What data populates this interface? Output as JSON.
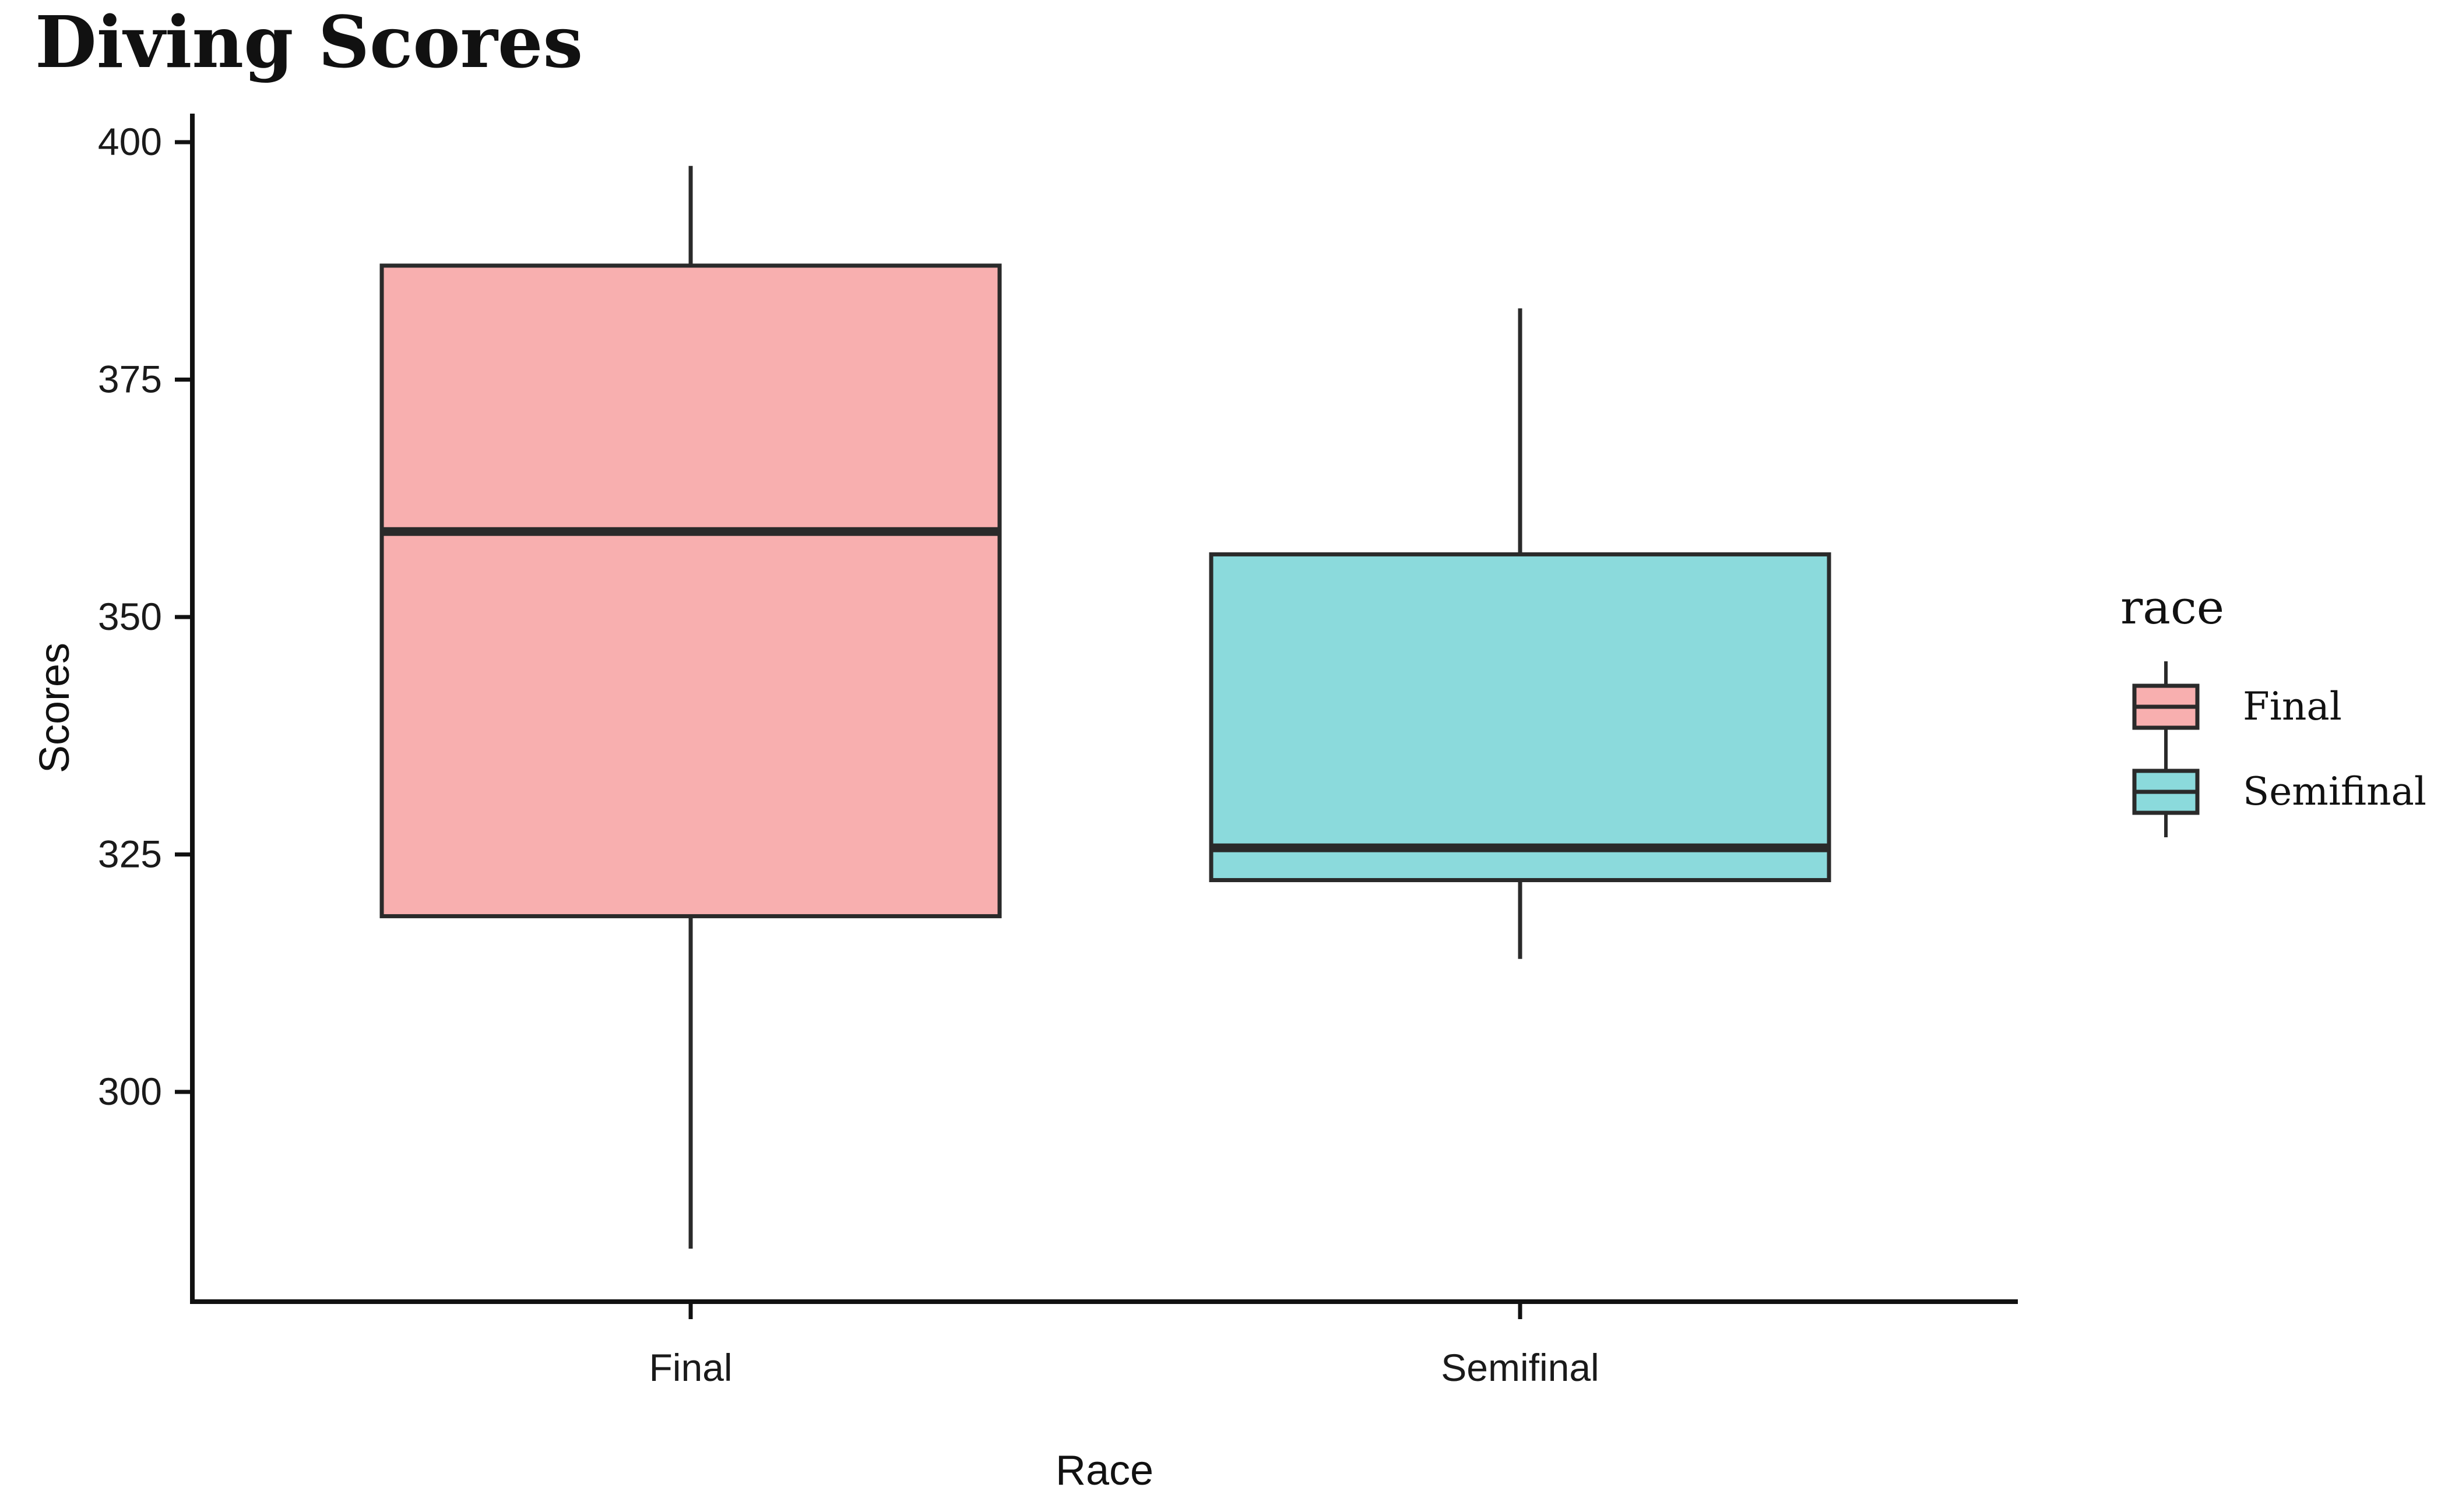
{
  "chart_data": {
    "type": "boxplot",
    "title": "Diving Scores",
    "xlabel": "Race",
    "ylabel": "Scores",
    "categories": [
      "Final",
      "Semifinal"
    ],
    "y_ticks": [
      300,
      325,
      350,
      375,
      400
    ],
    "ylim": [
      278,
      403
    ],
    "grid": false,
    "boxes": [
      {
        "category": "Final",
        "whisker_low": 283.5,
        "q1": 318.5,
        "median": 359,
        "q3": 387,
        "whisker_high": 397.5,
        "color": "#F8AFAF"
      },
      {
        "category": "Semifinal",
        "whisker_low": 314,
        "q1": 322.3,
        "median": 325.7,
        "q3": 356.6,
        "whisker_high": 382.5,
        "color": "#8BDADC"
      }
    ],
    "legend": {
      "title": "race",
      "position": "right",
      "items": [
        {
          "label": "Final",
          "color": "#F8AFAF"
        },
        {
          "label": "Semifinal",
          "color": "#8BDADC"
        }
      ]
    },
    "stroke_color": "#2a2a2a"
  }
}
